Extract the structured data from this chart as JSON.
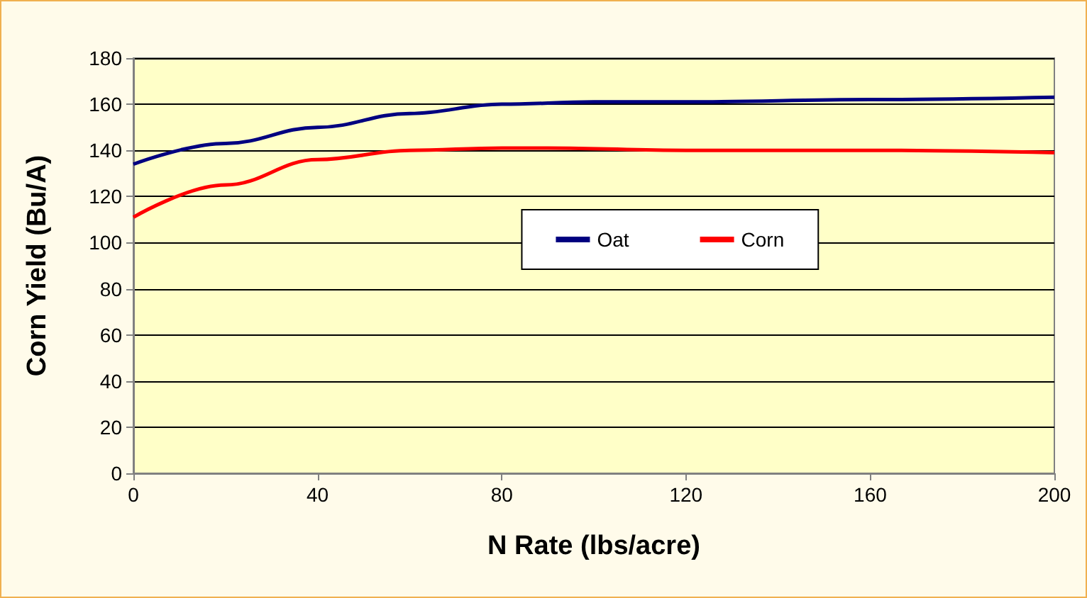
{
  "chart_data": {
    "type": "line",
    "xlabel": "N Rate (lbs/acre)",
    "ylabel": "Corn Yield (Bu/A)",
    "series": [
      {
        "name": "Oat",
        "color": "#000080",
        "x": [
          0,
          20,
          40,
          60,
          80,
          100,
          120,
          160,
          200
        ],
        "values": [
          134,
          143,
          150,
          156,
          160,
          161,
          161,
          162,
          163
        ]
      },
      {
        "name": "Corn",
        "color": "#ff0000",
        "x": [
          0,
          20,
          40,
          60,
          80,
          90,
          120,
          160,
          200
        ],
        "values": [
          111,
          125,
          136,
          140,
          141,
          141,
          140,
          140,
          139
        ]
      }
    ],
    "xlim": [
      0,
      200
    ],
    "xticks": [
      0,
      40,
      80,
      120,
      160,
      200
    ],
    "ylim": [
      0,
      180
    ],
    "yticks": [
      0,
      20,
      40,
      60,
      80,
      100,
      120,
      140,
      160,
      180
    ],
    "grid": "y",
    "legend": "center",
    "marker": "none",
    "line_style": "solid"
  }
}
